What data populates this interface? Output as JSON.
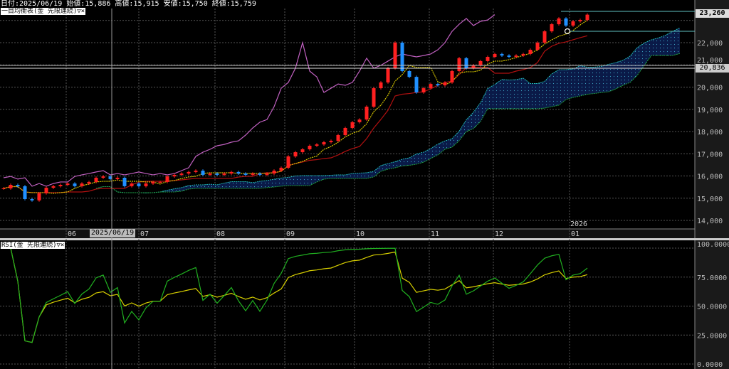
{
  "header": {
    "info": "日付:2025/06/19 始値:15,886 高値:15,915 安値:15,750 終値:15,759",
    "main_title": "一目均衡表(金 先限連続)▽×",
    "rsi_title": "RSI(金 先限連続)▽×"
  },
  "price_axis": {
    "ticks": [
      "22,000",
      "21,000",
      "20,000",
      "19,000",
      "18,000",
      "17,000",
      "16,000",
      "15,000",
      "14,000"
    ],
    "last_price_tag": "23,260",
    "crosshair_price_tag": "20,836"
  },
  "rsi_axis": {
    "ticks": [
      "100.0000",
      "75.0000",
      "50.0000",
      "25.0000",
      "0.0000"
    ]
  },
  "date_axis": {
    "months": [
      "06",
      "07",
      "08",
      "09",
      "10",
      "11",
      "12",
      "01"
    ],
    "year_label": "2026",
    "crosshair_date": "2025/06/19"
  },
  "colors": {
    "up": "#ff2020",
    "down": "#2090ff",
    "tenkan": "#d4c400",
    "kijun": "#b01010",
    "chikou": "#c060c0",
    "span_a": "#20b8b8",
    "span_b": "#20a040",
    "cloud": "#0a1a48",
    "rsi": "#20b020",
    "rsi_signal": "#d8d000"
  },
  "chart_data": {
    "type": "candlestick",
    "ylim": [
      13700,
      23800
    ],
    "closes": [
      15440,
      15600,
      15536,
      14960,
      14900,
      15220,
      15470,
      15540,
      15600,
      15660,
      15540,
      15660,
      15730,
      15920,
      15980,
      15860,
      15920,
      15540,
      15660,
      15540,
      15660,
      15730,
      15730,
      15980,
      16050,
      16110,
      16180,
      16240,
      16050,
      16110,
      16050,
      16110,
      16180,
      16110,
      16050,
      16110,
      16050,
      16110,
      16240,
      16370,
      16880,
      17070,
      17200,
      17360,
      17420,
      17520,
      17580,
      17840,
      18160,
      18420,
      18540,
      19120,
      19950,
      20210,
      20850,
      22000,
      20720,
      20460,
      19760,
      19950,
      20140,
      20080,
      20210,
      20720,
      21300,
      20850,
      20980,
      21170,
      21360,
      21490,
      21420,
      21360,
      21420,
      21490,
      21680,
      22000,
      22510,
      22830,
      23090,
      22770,
      22960,
      23020,
      23260
    ],
    "rsi_ylim": [
      0,
      100
    ]
  }
}
